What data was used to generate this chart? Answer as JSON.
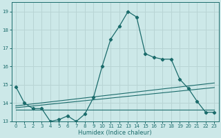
{
  "title": "",
  "xlabel": "Humidex (Indice chaleur)",
  "bg_color": "#cce8e8",
  "grid_color": "#b8d4d4",
  "line_color": "#1a6b6b",
  "xlim": [
    -0.5,
    23.5
  ],
  "ylim": [
    13,
    19.5
  ],
  "yticks": [
    13,
    14,
    15,
    16,
    17,
    18,
    19
  ],
  "xticks": [
    0,
    1,
    2,
    3,
    4,
    5,
    6,
    7,
    8,
    9,
    10,
    11,
    12,
    13,
    14,
    15,
    16,
    17,
    18,
    19,
    20,
    21,
    22,
    23
  ],
  "main_x": [
    0,
    1,
    2,
    3,
    4,
    5,
    6,
    7,
    8,
    9,
    10,
    11,
    12,
    13,
    14,
    15,
    16,
    17,
    18,
    19,
    20,
    21,
    22,
    23
  ],
  "main_y": [
    14.9,
    14.0,
    13.7,
    13.7,
    13.0,
    13.1,
    13.3,
    13.0,
    13.4,
    14.3,
    16.0,
    17.5,
    18.2,
    19.0,
    18.7,
    16.7,
    16.5,
    16.4,
    16.4,
    15.3,
    14.8,
    14.1,
    13.5,
    13.5
  ],
  "line2_x": [
    0,
    23
  ],
  "line2_y": [
    13.85,
    15.1
  ],
  "line3_x": [
    0,
    23
  ],
  "line3_y": [
    13.75,
    14.85
  ],
  "line4_x": [
    0,
    23
  ],
  "line4_y": [
    13.65,
    13.65
  ],
  "tick_fontsize": 5.0,
  "xlabel_fontsize": 6.0
}
